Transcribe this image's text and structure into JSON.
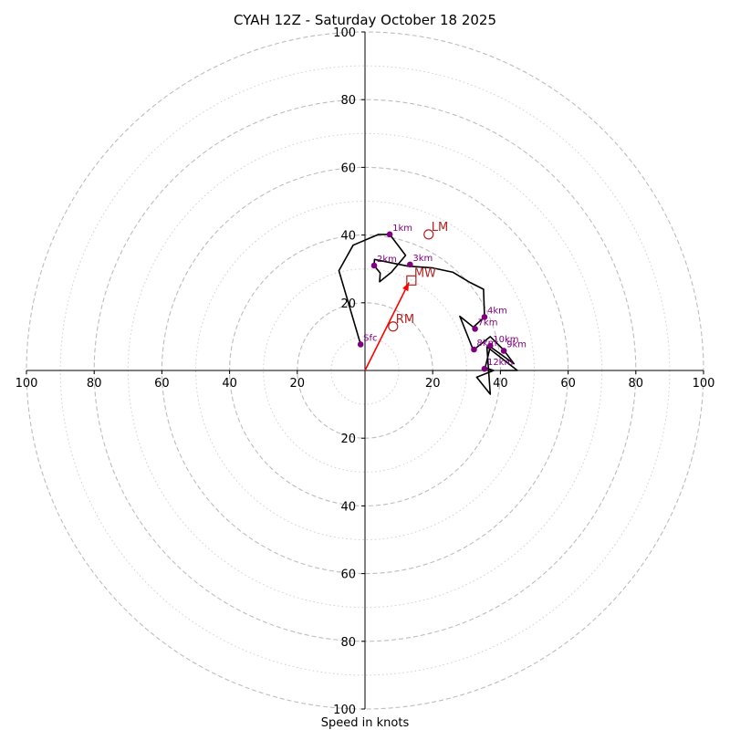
{
  "chart_data": {
    "type": "hodograph",
    "title": "CYAH 12Z - Saturday October 18 2025",
    "xlabel": "Speed in knots",
    "range": [
      -100,
      100
    ],
    "rings": [
      20,
      40,
      60,
      80,
      100
    ],
    "minor_rings": [
      10,
      30,
      50,
      70,
      90
    ],
    "tick_labels": [
      "100",
      "80",
      "60",
      "40",
      "20",
      "20",
      "40",
      "60",
      "80",
      "100"
    ],
    "hodograph_trace": [
      [
        -1.3,
        7.7
      ],
      [
        -7.7,
        29.5
      ],
      [
        -3.5,
        37
      ],
      [
        4,
        40.2
      ],
      [
        7.3,
        40.2
      ],
      [
        12,
        34
      ],
      [
        7.8,
        29
      ],
      [
        4.3,
        26.2
      ],
      [
        4.5,
        28.8
      ],
      [
        2.7,
        31
      ],
      [
        2.8,
        32.8
      ],
      [
        12.7,
        30.8
      ],
      [
        20,
        30.3
      ],
      [
        26,
        29
      ],
      [
        31,
        26
      ],
      [
        35,
        24
      ],
      [
        35.3,
        15.8
      ],
      [
        32,
        12.8
      ],
      [
        28,
        16
      ],
      [
        32,
        6
      ],
      [
        37,
        10
      ],
      [
        41,
        6
      ],
      [
        44,
        2
      ],
      [
        37,
        7
      ],
      [
        35.5,
        0.8
      ],
      [
        38,
        0
      ],
      [
        33,
        -2
      ],
      [
        37,
        -7
      ],
      [
        36,
        7
      ],
      [
        45,
        0
      ],
      [
        40,
        0
      ]
    ],
    "height_points": [
      {
        "label": "Sfc",
        "u": -1.3,
        "v": 7.7
      },
      {
        "label": "1km",
        "u": 7.3,
        "v": 40.2
      },
      {
        "label": "2km",
        "u": 2.7,
        "v": 31
      },
      {
        "label": "3km",
        "u": 13.3,
        "v": 31.3
      },
      {
        "label": "4km",
        "u": 35.3,
        "v": 15.8
      },
      {
        "label": "7km",
        "u": 32.5,
        "v": 12.3
      },
      {
        "label": "8km",
        "u": 32.2,
        "v": 6.2
      },
      {
        "label": "9km",
        "u": 41,
        "v": 5.8
      },
      {
        "label": "10km",
        "u": 37,
        "v": 7.3
      },
      {
        "label": "12km",
        "u": 35.3,
        "v": 0.5
      }
    ],
    "storm_motion": [
      {
        "label": "LM",
        "u": 18.8,
        "v": 40.2,
        "marker": "circle"
      },
      {
        "label": "MW",
        "u": 13.7,
        "v": 26.6,
        "marker": "square"
      },
      {
        "label": "RM",
        "u": 8.3,
        "v": 13,
        "marker": "circle"
      }
    ],
    "shear_vector": {
      "from": [
        0,
        0
      ],
      "to": [
        13,
        26
      ]
    },
    "colors": {
      "trace": "#000000",
      "height_points": "#800080",
      "storm_motion": "#b22222",
      "shear_vector": "#ff0000",
      "grid": "#bdbdbd"
    }
  }
}
